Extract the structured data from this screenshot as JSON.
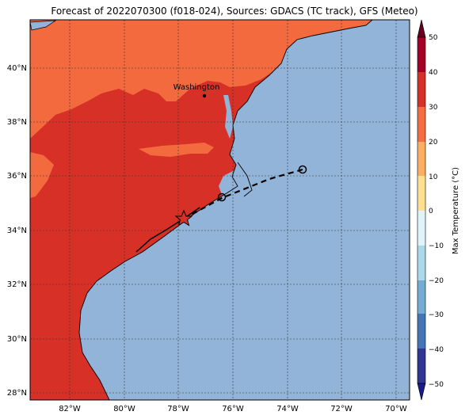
{
  "title": "Forecast of 2022070300 (f018-024), Sources: GDACS (TC track), GFS (Meteo)",
  "map": {
    "lon_labels": [
      "82°W",
      "80°W",
      "78°W",
      "76°W",
      "74°W",
      "72°W",
      "70°W"
    ],
    "lat_labels": [
      "40°N",
      "38°N",
      "36°N",
      "34°N",
      "32°N",
      "30°N",
      "28°N"
    ],
    "city_label": "Washington",
    "colors": {
      "ocean": "#92b4d8",
      "band_20_30": "#f36a3f",
      "band_30_40": "#d73027",
      "coastline": "#000000"
    }
  },
  "colorbar": {
    "label": "Max Temperature (°C)",
    "ticks": [
      "50",
      "40",
      "30",
      "20",
      "10",
      "0",
      "−10",
      "−20",
      "−30",
      "−40",
      "−50"
    ],
    "colors": [
      "#67001f",
      "#a50026",
      "#d73027",
      "#f46d43",
      "#fdae61",
      "#fee090",
      "#e0f3f8",
      "#abd9e9",
      "#74add1",
      "#4575b4",
      "#313695",
      "#1a1a8a"
    ]
  }
}
